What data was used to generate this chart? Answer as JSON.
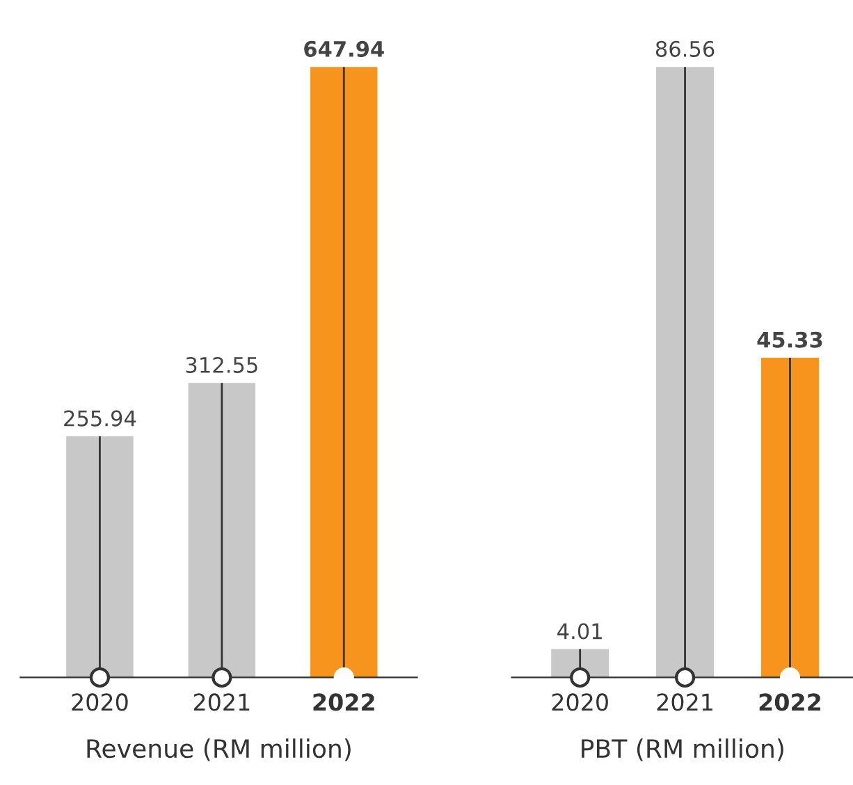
{
  "chart_data": [
    {
      "type": "bar",
      "xlabel": "Revenue (RM million)",
      "categories": [
        "2020",
        "2021",
        "2022"
      ],
      "values": [
        255.94,
        312.55,
        647.94
      ],
      "colors": [
        "#c8c8c8",
        "#c8c8c8",
        "#f7941d"
      ],
      "data_labels": true,
      "legend": false
    },
    {
      "type": "bar",
      "xlabel": "PBT (RM million)",
      "categories": [
        "2020",
        "2021",
        "2022"
      ],
      "values": [
        4.01,
        86.56,
        45.33
      ],
      "colors": [
        "#c8c8c8",
        "#c8c8c8",
        "#f7941d"
      ],
      "data_labels": true,
      "legend": false
    }
  ]
}
